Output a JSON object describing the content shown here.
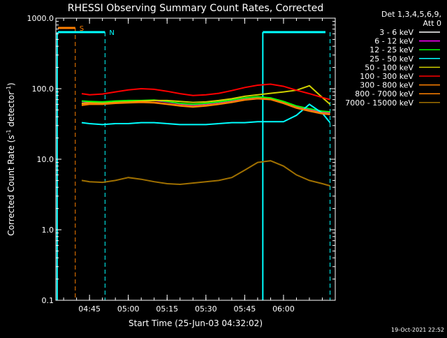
{
  "chart_data": {
    "type": "line",
    "title": "RHESSI Observing Summary Count Rates, Corrected",
    "xlabel": "Start Time (25-Jun-03 04:32:02)",
    "ylabel_main": "Corrected Count Rate (s",
    "ylabel_sup1": "-1",
    "ylabel_mid": " detector",
    "ylabel_sup2": "-1",
    "ylabel_end": ")",
    "yscale": "log",
    "ylim": [
      0.1,
      1000
    ],
    "xlim_minutes": [
      0,
      108
    ],
    "y_ticks": [
      {
        "value": 1000,
        "label": "1000.0"
      },
      {
        "value": 100,
        "label": "100.0"
      },
      {
        "value": 10,
        "label": "10.0"
      },
      {
        "value": 1,
        "label": "1.0"
      },
      {
        "value": 0.1,
        "label": "0.1"
      }
    ],
    "x_ticks": [
      {
        "minute": 13,
        "label": "04:45"
      },
      {
        "minute": 28,
        "label": "05:00"
      },
      {
        "minute": 43,
        "label": "05:15"
      },
      {
        "minute": 58,
        "label": "05:30"
      },
      {
        "minute": 73,
        "label": "05:45"
      },
      {
        "minute": 88,
        "label": "06:00"
      }
    ],
    "legend_header_1": "Det 1,3,4,5,6,9,",
    "legend_header_2": "Att 0",
    "series": [
      {
        "name": "3 - 6 keV",
        "color": "#000000",
        "x": [
          10,
          13,
          18,
          23,
          28,
          33,
          38,
          43,
          48,
          53,
          58,
          63,
          68,
          73,
          78,
          83,
          88,
          93,
          98,
          103,
          106
        ],
        "y": [
          65,
          64,
          63,
          65,
          66,
          66,
          67,
          64,
          60,
          58,
          60,
          63,
          67,
          72,
          75,
          72,
          64,
          55,
          50,
          46,
          45
        ]
      },
      {
        "name": "6 - 12 keV",
        "color": "#ff00ff",
        "x": [
          10,
          13,
          18,
          23,
          28,
          33,
          38,
          43,
          48,
          53,
          58,
          63,
          68,
          73,
          78,
          83,
          88,
          93,
          98,
          103,
          106
        ],
        "y": [
          66,
          65,
          64,
          66,
          67,
          67,
          68,
          65,
          61,
          59,
          61,
          64,
          68,
          73,
          76,
          73,
          65,
          56,
          51,
          47,
          46
        ]
      },
      {
        "name": "12 - 25 keV",
        "color": "#00ff00",
        "x": [
          10,
          13,
          18,
          23,
          28,
          33,
          38,
          43,
          48,
          53,
          58,
          63,
          68,
          73,
          78,
          83,
          88,
          93,
          98,
          103,
          106
        ],
        "y": [
          67,
          66,
          65,
          67,
          68,
          68,
          69,
          66,
          62,
          60,
          62,
          65,
          69,
          74,
          77,
          74,
          66,
          57,
          52,
          48,
          47
        ]
      },
      {
        "name": "25 - 50 keV",
        "color": "#00ffff",
        "x": [
          10,
          13,
          18,
          23,
          28,
          33,
          38,
          43,
          48,
          53,
          58,
          63,
          68,
          73,
          78,
          83,
          88,
          93,
          98,
          103,
          106
        ],
        "y": [
          33,
          32,
          31,
          32,
          32,
          33,
          33,
          32,
          31,
          31,
          31,
          32,
          33,
          33,
          34,
          34,
          34,
          42,
          60,
          45,
          33
        ]
      },
      {
        "name": "50 - 100 keV",
        "color": "#d0d000",
        "x": [
          10,
          13,
          18,
          23,
          28,
          33,
          38,
          43,
          48,
          53,
          58,
          63,
          68,
          73,
          78,
          83,
          88,
          93,
          98,
          103,
          106
        ],
        "y": [
          62,
          63,
          62,
          64,
          65,
          67,
          68,
          68,
          66,
          64,
          65,
          68,
          72,
          78,
          82,
          86,
          90,
          95,
          110,
          75,
          60
        ]
      },
      {
        "name": "100 - 300 keV",
        "color": "#ff0000",
        "x": [
          10,
          13,
          18,
          23,
          28,
          33,
          38,
          43,
          48,
          53,
          58,
          63,
          68,
          73,
          78,
          83,
          88,
          93,
          98,
          103,
          106
        ],
        "y": [
          85,
          82,
          84,
          90,
          96,
          100,
          98,
          92,
          85,
          80,
          82,
          86,
          94,
          104,
          112,
          116,
          108,
          95,
          85,
          75,
          70
        ]
      },
      {
        "name": "300 - 800 keV",
        "color": "#ff8000",
        "x": [
          10,
          13,
          18,
          23,
          28,
          33,
          38,
          43,
          48,
          53,
          58,
          63,
          68,
          73,
          78,
          83,
          88,
          93,
          98,
          103,
          106
        ],
        "y": [
          60,
          62,
          61,
          63,
          64,
          65,
          64,
          61,
          58,
          56,
          58,
          61,
          65,
          70,
          73,
          71,
          63,
          54,
          49,
          45,
          44
        ]
      },
      {
        "name": "800 - 7000 keV",
        "color": "#ff8000",
        "x": [
          10,
          13,
          18,
          23,
          28,
          33,
          38,
          43,
          48,
          53,
          58,
          63,
          68,
          73,
          78,
          83,
          88,
          93,
          98,
          103,
          106
        ],
        "y": [
          58,
          60,
          60,
          62,
          63,
          64,
          63,
          60,
          57,
          55,
          57,
          60,
          64,
          69,
          72,
          70,
          62,
          53,
          48,
          44,
          43
        ]
      },
      {
        "name": "7000 - 15000 keV",
        "color": "#a07000",
        "x": [
          10,
          13,
          18,
          23,
          28,
          33,
          38,
          43,
          48,
          53,
          58,
          63,
          68,
          73,
          78,
          83,
          88,
          93,
          98,
          103,
          106
        ],
        "y": [
          5,
          4.8,
          4.7,
          5,
          5.5,
          5.2,
          4.8,
          4.5,
          4.4,
          4.6,
          4.8,
          5,
          5.5,
          7,
          9,
          9.5,
          8,
          6,
          5,
          4.5,
          4.2
        ]
      }
    ],
    "annotations": {
      "saa_label": "S",
      "night_label": "N",
      "saa_minute": 7.5,
      "night_start_minute": 19,
      "day_start_minute": 80,
      "night_end_minute": 106
    },
    "timestamp": "19-Oct-2021 22:52"
  }
}
